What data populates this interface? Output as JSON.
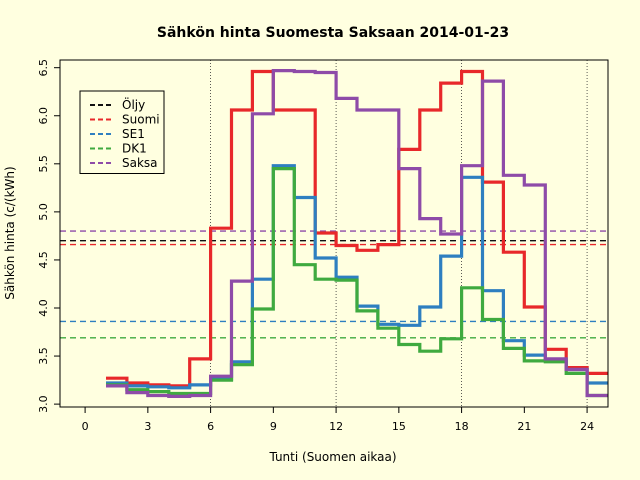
{
  "chart_data": {
    "type": "line",
    "title": "Sähkön hinta Suomesta Saksaan 2014-01-23",
    "xlabel": "Tunti (Suomen aikaa)",
    "ylabel": "Sähkön hinta (c/(kWh)",
    "xlim": [
      -1.2,
      25.0
    ],
    "ylim": [
      2.97,
      6.58
    ],
    "xticks": [
      0,
      3,
      6,
      9,
      12,
      15,
      18,
      21,
      24
    ],
    "yticks": [
      3.0,
      3.5,
      4.0,
      4.5,
      5.0,
      5.5,
      6.0,
      6.5
    ],
    "ytick_labels": [
      "3.0",
      "3.5",
      "4.0",
      "4.5",
      "5.0",
      "5.5",
      "6.0",
      "6.5"
    ],
    "vgrid": [
      6,
      12,
      18,
      24
    ],
    "legend_position": "top-left",
    "hours": [
      1,
      2,
      3,
      4,
      5,
      6,
      7,
      8,
      9,
      10,
      11,
      12,
      13,
      14,
      15,
      16,
      17,
      18,
      19,
      20,
      21,
      22,
      23,
      24
    ],
    "series": [
      {
        "name": "Suomi",
        "color": "#E8282A",
        "values": [
          3.27,
          3.22,
          3.2,
          3.19,
          3.47,
          4.83,
          6.06,
          6.46,
          6.06,
          6.06,
          4.78,
          4.65,
          4.6,
          4.66,
          5.65,
          6.06,
          6.34,
          6.46,
          5.31,
          4.58,
          4.01,
          3.57,
          3.38,
          3.32
        ]
      },
      {
        "name": "SE1",
        "color": "#2E7FC0",
        "values": [
          3.22,
          3.19,
          3.18,
          3.17,
          3.2,
          3.26,
          3.44,
          4.3,
          5.48,
          5.15,
          4.52,
          4.32,
          4.02,
          3.83,
          3.82,
          4.01,
          4.54,
          5.36,
          4.18,
          3.66,
          3.51,
          3.46,
          3.36,
          3.22
        ]
      },
      {
        "name": "DK1",
        "color": "#3FAA3F",
        "values": [
          3.2,
          3.15,
          3.13,
          3.11,
          3.11,
          3.25,
          3.41,
          3.99,
          5.45,
          4.45,
          4.3,
          4.29,
          3.97,
          3.79,
          3.62,
          3.55,
          3.68,
          4.21,
          3.88,
          3.58,
          3.45,
          3.44,
          3.32,
          3.09
        ]
      },
      {
        "name": "Saksa",
        "color": "#8E4BA8",
        "values": [
          3.19,
          3.12,
          3.09,
          3.08,
          3.09,
          3.29,
          4.28,
          6.02,
          6.47,
          6.46,
          6.45,
          6.18,
          6.06,
          6.06,
          5.45,
          4.93,
          4.77,
          5.48,
          6.36,
          5.38,
          5.28,
          3.47,
          3.36,
          3.09
        ]
      }
    ],
    "reference_lines": [
      {
        "name": "Öljy",
        "color": "#111111",
        "value": 4.7
      },
      {
        "name": "Suomi",
        "color": "#E8282A",
        "value": 4.66
      },
      {
        "name": "SE1",
        "color": "#2E7FC0",
        "value": 3.86
      },
      {
        "name": "DK1",
        "color": "#3FAA3F",
        "value": 3.69
      },
      {
        "name": "Saksa",
        "color": "#8E4BA8",
        "value": 4.8
      }
    ],
    "legend": [
      {
        "label": "Öljy",
        "color": "#111111"
      },
      {
        "label": "Suomi",
        "color": "#E8282A"
      },
      {
        "label": "SE1",
        "color": "#2E7FC0"
      },
      {
        "label": "DK1",
        "color": "#3FAA3F"
      },
      {
        "label": "Saksa",
        "color": "#8E4BA8"
      }
    ]
  }
}
